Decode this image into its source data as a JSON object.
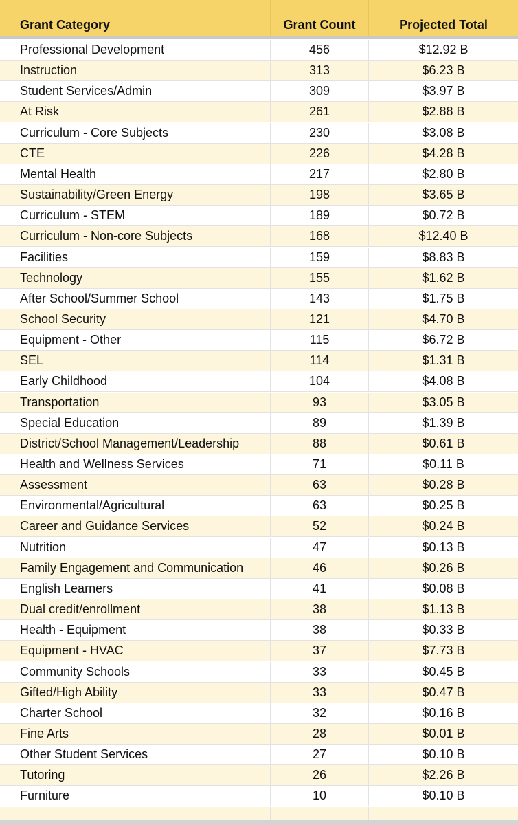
{
  "header": {
    "category": "Grant Category",
    "count": "Grant Count",
    "total": "Projected Total"
  },
  "rows": [
    {
      "category": "Professional Development",
      "count": "456",
      "total": "$12.92 B"
    },
    {
      "category": "Instruction",
      "count": "313",
      "total": "$6.23 B"
    },
    {
      "category": "Student Services/Admin",
      "count": "309",
      "total": "$3.97 B"
    },
    {
      "category": "At Risk",
      "count": "261",
      "total": "$2.88 B"
    },
    {
      "category": "Curriculum - Core Subjects",
      "count": "230",
      "total": "$3.08 B"
    },
    {
      "category": "CTE",
      "count": "226",
      "total": "$4.28 B"
    },
    {
      "category": "Mental Health",
      "count": "217",
      "total": "$2.80 B"
    },
    {
      "category": "Sustainability/Green Energy",
      "count": "198",
      "total": "$3.65 B"
    },
    {
      "category": "Curriculum - STEM",
      "count": "189",
      "total": "$0.72 B"
    },
    {
      "category": "Curriculum - Non-core Subjects",
      "count": "168",
      "total": "$12.40 B"
    },
    {
      "category": "Facilities",
      "count": "159",
      "total": "$8.83 B"
    },
    {
      "category": "Technology",
      "count": "155",
      "total": "$1.62 B"
    },
    {
      "category": "After School/Summer School",
      "count": "143",
      "total": "$1.75 B"
    },
    {
      "category": "School Security",
      "count": "121",
      "total": "$4.70 B"
    },
    {
      "category": "Equipment - Other",
      "count": "115",
      "total": "$6.72 B"
    },
    {
      "category": "SEL",
      "count": "114",
      "total": "$1.31 B"
    },
    {
      "category": "Early Childhood",
      "count": "104",
      "total": "$4.08 B"
    },
    {
      "category": "Transportation",
      "count": "93",
      "total": "$3.05 B"
    },
    {
      "category": "Special Education",
      "count": "89",
      "total": "$1.39 B"
    },
    {
      "category": "District/School Management/Leadership",
      "count": "88",
      "total": "$0.61 B"
    },
    {
      "category": "Health and Wellness Services",
      "count": "71",
      "total": "$0.11 B"
    },
    {
      "category": "Assessment",
      "count": "63",
      "total": "$0.28 B"
    },
    {
      "category": "Environmental/Agricultural",
      "count": "63",
      "total": "$0.25 B"
    },
    {
      "category": "Career and Guidance Services",
      "count": "52",
      "total": "$0.24 B"
    },
    {
      "category": "Nutrition",
      "count": "47",
      "total": "$0.13 B"
    },
    {
      "category": "Family Engagement and Communication",
      "count": "46",
      "total": "$0.26 B"
    },
    {
      "category": "English Learners",
      "count": "41",
      "total": "$0.08 B"
    },
    {
      "category": "Dual credit/enrollment",
      "count": "38",
      "total": "$1.13 B"
    },
    {
      "category": "Health - Equipment",
      "count": "38",
      "total": "$0.33 B"
    },
    {
      "category": "Equipment - HVAC",
      "count": "37",
      "total": "$7.73 B"
    },
    {
      "category": "Community Schools",
      "count": "33",
      "total": "$0.45 B"
    },
    {
      "category": "Gifted/High Ability",
      "count": "33",
      "total": "$0.47 B"
    },
    {
      "category": "Charter School",
      "count": "32",
      "total": "$0.16 B"
    },
    {
      "category": "Fine Arts",
      "count": "28",
      "total": "$0.01 B"
    },
    {
      "category": "Other Student Services",
      "count": "27",
      "total": "$0.10 B"
    },
    {
      "category": "Tutoring",
      "count": "26",
      "total": "$2.26 B"
    },
    {
      "category": "Furniture",
      "count": "10",
      "total": "$0.10 B"
    }
  ]
}
